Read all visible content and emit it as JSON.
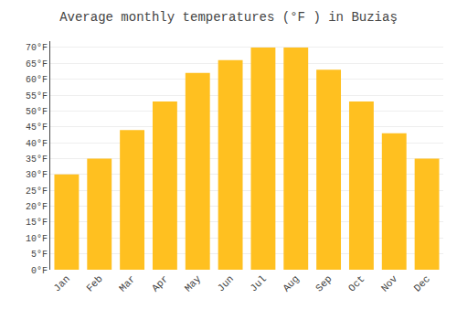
{
  "chart_data": {
    "type": "bar",
    "title": "Average monthly temperatures (°F ) in Buziaş",
    "categories": [
      "Jan",
      "Feb",
      "Mar",
      "Apr",
      "May",
      "Jun",
      "Jul",
      "Aug",
      "Sep",
      "Oct",
      "Nov",
      "Dec"
    ],
    "values": [
      30,
      35,
      44,
      53,
      62,
      66,
      70,
      70,
      63,
      53,
      43,
      35
    ],
    "color": "#FFC020",
    "ylim": [
      0,
      72
    ],
    "yticks": [
      {
        "value": 0,
        "label": "0°F"
      },
      {
        "value": 5,
        "label": "5°F"
      },
      {
        "value": 10,
        "label": "10°F"
      },
      {
        "value": 15,
        "label": "15°F"
      },
      {
        "value": 20,
        "label": "20°F"
      },
      {
        "value": 25,
        "label": "25°F"
      },
      {
        "value": 30,
        "label": "30°F"
      },
      {
        "value": 35,
        "label": "35°F"
      },
      {
        "value": 40,
        "label": "40°F"
      },
      {
        "value": 45,
        "label": "45°F"
      },
      {
        "value": 50,
        "label": "50°F"
      },
      {
        "value": 55,
        "label": "55°F"
      },
      {
        "value": 60,
        "label": "60°F"
      },
      {
        "value": 65,
        "label": "65°F"
      },
      {
        "value": 70,
        "label": "70°F"
      }
    ],
    "grid": true
  }
}
